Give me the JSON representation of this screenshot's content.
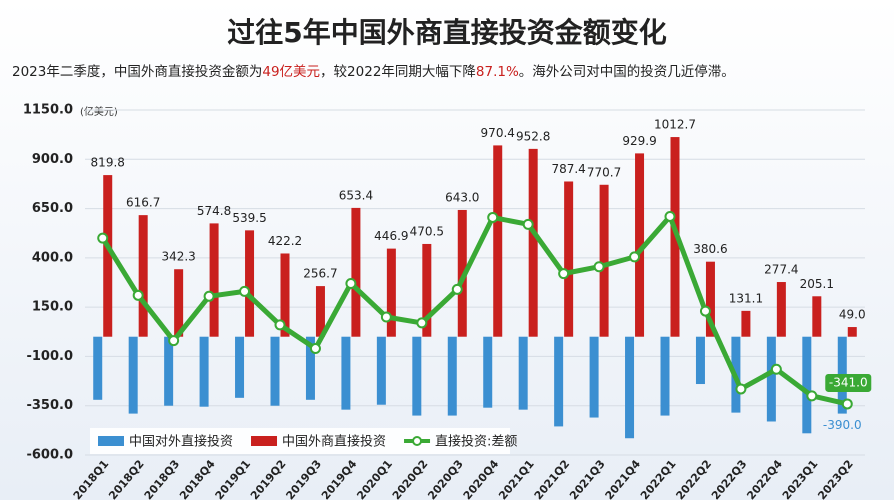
{
  "chart_data": {
    "type": "bar_line",
    "title": "过往5年中国外商直接投资金额变化",
    "subtitle": [
      "2023年二季度，中国外商直接投资金额为",
      "49亿美元",
      "，较2022年同期大幅下降",
      "87.1%",
      "。海外公司对中国的投资几近停滞。"
    ],
    "y_unit": "(亿美元)",
    "categories": [
      "2018Q1",
      "2018Q2",
      "2018Q3",
      "2018Q4",
      "2019Q1",
      "2019Q2",
      "2019Q3",
      "2019Q4",
      "2020Q1",
      "2020Q2",
      "2020Q3",
      "2020Q4",
      "2021Q1",
      "2021Q2",
      "2021Q3",
      "2021Q4",
      "2022Q1",
      "2022Q2",
      "2022Q3",
      "2022Q4",
      "2023Q1",
      "2023Q2"
    ],
    "ylim": [
      -600,
      1150
    ],
    "yticks": [
      {
        "value": 1150,
        "label": "1150.0"
      },
      {
        "value": 900,
        "label": "900.0"
      },
      {
        "value": 650,
        "label": "650.0"
      },
      {
        "value": 400,
        "label": "400.0"
      },
      {
        "value": 150,
        "label": "150.0"
      },
      {
        "value": -100,
        "label": "-100.0"
      },
      {
        "value": -350,
        "label": "-350.0"
      },
      {
        "value": -600,
        "label": "-600.0"
      }
    ],
    "grid": true,
    "series": [
      {
        "name": "中国对外直接投资",
        "color": "#3b8fd1",
        "kind": "bar",
        "values": [
          -320,
          -390,
          -350,
          -355,
          -310,
          -350,
          -320,
          -370,
          -345,
          -400,
          -400,
          -360,
          -370,
          -455,
          -410,
          -515,
          -400,
          -240,
          -385,
          -430,
          -490,
          -390
        ],
        "value_labels": [
          null,
          null,
          null,
          null,
          null,
          null,
          null,
          null,
          null,
          null,
          null,
          null,
          null,
          null,
          null,
          null,
          null,
          null,
          null,
          null,
          null,
          "-390.0"
        ]
      },
      {
        "name": "中国外商直接投资",
        "color": "#c9201e",
        "kind": "bar",
        "values": [
          819.8,
          616.7,
          342.3,
          574.8,
          539.5,
          422.2,
          256.7,
          653.4,
          446.9,
          470.5,
          643.0,
          970.4,
          952.8,
          787.4,
          770.7,
          929.9,
          1012.7,
          380.6,
          131.1,
          277.4,
          205.1,
          49.0
        ],
        "value_labels": [
          "819.8",
          "616.7",
          "342.3",
          "574.8",
          "539.5",
          "422.2",
          "256.7",
          "653.4",
          "446.9",
          "470.5",
          "643.0",
          "970.4",
          "952.8",
          "787.4",
          "770.7",
          "929.9",
          "1012.7",
          "380.6",
          "131.1",
          "277.4",
          "205.1",
          "49.0"
        ]
      },
      {
        "name": "直接投资:差额",
        "color": "#3aa935",
        "kind": "line",
        "values": [
          500,
          210,
          -20,
          205,
          230,
          60,
          -60,
          270,
          100,
          70,
          240,
          605,
          570,
          320,
          355,
          405,
          610,
          130,
          -265,
          -165,
          -300,
          -341
        ],
        "value_labels": [
          null,
          null,
          null,
          null,
          null,
          null,
          null,
          null,
          null,
          null,
          null,
          null,
          null,
          null,
          null,
          null,
          null,
          null,
          null,
          null,
          null,
          "-341.0"
        ]
      }
    ]
  }
}
